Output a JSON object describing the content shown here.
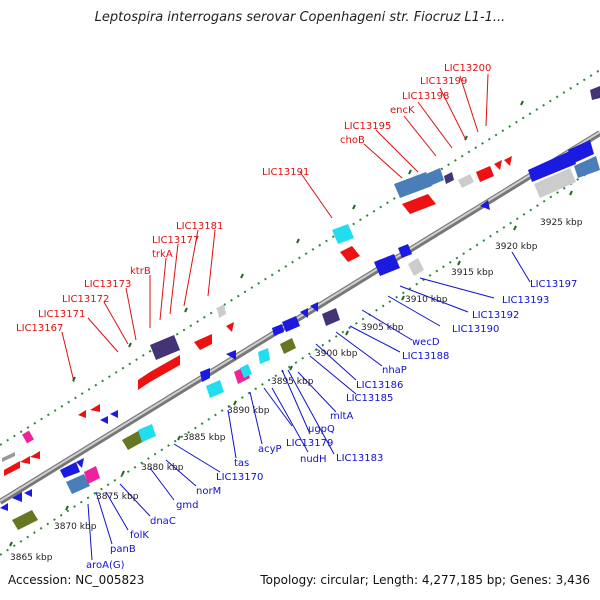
{
  "header": {
    "title": "Leptospira interrogans serovar Copenhageni str. Fiocruz L1-1..."
  },
  "footer": {
    "accession": "Accession: NC_005823",
    "summary": "Topology: circular; Length: 4,277,185 bp; Genes: 3,436"
  },
  "colors": {
    "upper_gene_label": "#dd1111",
    "lower_gene_label": "#1111cc",
    "backbone": "#888888",
    "tick": "#228833",
    "gene_red": "#ee1111",
    "gene_blue": "#1a1ae0",
    "gene_steelblue": "#4a7eb8",
    "gene_cyan": "#22ddee",
    "gene_purple": "#443377",
    "gene_olive": "#667722",
    "gene_gray": "#bbbbbb",
    "gene_pink": "#ee2299"
  },
  "kbp_labels": [
    "3865 kbp",
    "3870 kbp",
    "3875 kbp",
    "3880 kbp",
    "3885 kbp",
    "3890 kbp",
    "3895 kbp",
    "3900 kbp",
    "3905 kbp",
    "3910 kbp",
    "3915 kbp",
    "3920 kbp",
    "3925 kbp"
  ],
  "upper_labels": [
    "LIC13167",
    "LIC13171",
    "LIC13172",
    "LIC13173",
    "ktrB",
    "trkA",
    "LIC13177",
    "LIC13181",
    "LIC13191",
    "choB",
    "LIC13195",
    "encK",
    "LIC13198",
    "LIC13199",
    "LIC13200"
  ],
  "lower_labels": [
    "aroA(G)",
    "panB",
    "folK",
    "dnaC",
    "gmd",
    "norM",
    "LIC13170",
    "tas",
    "acyP",
    "nudH",
    "LIC13179",
    "ugpQ",
    "LIC13183",
    "mltA",
    "LIC13185",
    "LIC13186",
    "nhaP",
    "LIC13188",
    "wecD",
    "LIC13190",
    "LIC13192",
    "LIC13193",
    "LIC13197"
  ]
}
